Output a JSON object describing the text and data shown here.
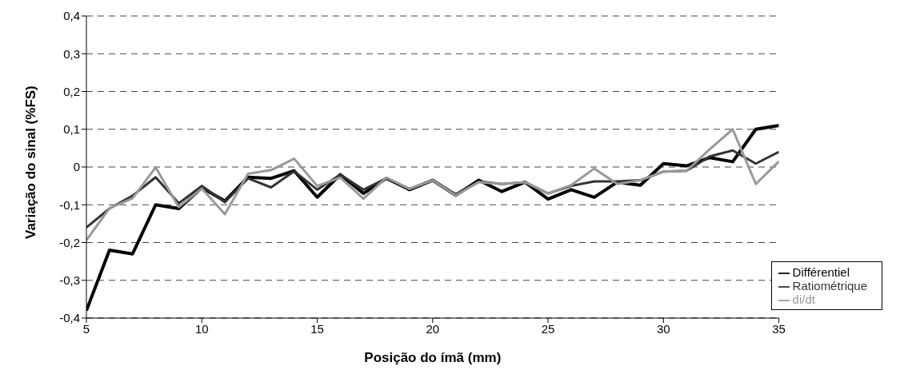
{
  "chart_data": {
    "type": "line",
    "xlabel": "Posição do ímã (mm)",
    "ylabel": "Variação do sinal (%FS)",
    "x": [
      5,
      6,
      7,
      8,
      9,
      10,
      11,
      12,
      13,
      14,
      15,
      16,
      17,
      18,
      19,
      20,
      21,
      22,
      23,
      24,
      25,
      26,
      27,
      28,
      29,
      30,
      31,
      32,
      33,
      34,
      35
    ],
    "series": [
      {
        "name": "Différentiel",
        "color": "#000000",
        "values": [
          -0.38,
          -0.22,
          -0.23,
          -0.1,
          -0.11,
          -0.055,
          -0.09,
          -0.027,
          -0.03,
          -0.01,
          -0.08,
          -0.02,
          -0.07,
          -0.03,
          -0.06,
          -0.035,
          -0.075,
          -0.035,
          -0.065,
          -0.04,
          -0.085,
          -0.06,
          -0.08,
          -0.04,
          -0.048,
          0.009,
          0.003,
          0.025,
          0.014,
          0.1,
          0.11
        ]
      },
      {
        "name": "Ratiométrique",
        "color": "#333333",
        "values": [
          -0.16,
          -0.11,
          -0.076,
          -0.027,
          -0.096,
          -0.05,
          -0.093,
          -0.03,
          -0.054,
          -0.011,
          -0.06,
          -0.02,
          -0.06,
          -0.03,
          -0.058,
          -0.035,
          -0.072,
          -0.038,
          -0.045,
          -0.04,
          -0.07,
          -0.05,
          -0.038,
          -0.038,
          -0.035,
          -0.012,
          -0.01,
          0.028,
          0.044,
          0.009,
          0.04
        ]
      },
      {
        "name": "di/dt",
        "color": "#999999",
        "values": [
          -0.194,
          -0.109,
          -0.083,
          -0.001,
          -0.106,
          -0.057,
          -0.125,
          -0.018,
          -0.008,
          0.022,
          -0.05,
          -0.028,
          -0.084,
          -0.028,
          -0.058,
          -0.035,
          -0.075,
          -0.04,
          -0.045,
          -0.04,
          -0.07,
          -0.048,
          -0.004,
          -0.045,
          -0.035,
          -0.012,
          -0.01,
          0.047,
          0.1,
          -0.045,
          0.015
        ]
      }
    ],
    "xlim": [
      5,
      35
    ],
    "xticks": [
      5,
      10,
      15,
      20,
      25,
      30,
      35
    ],
    "ylim": [
      -0.4,
      0.4
    ],
    "yticks": [
      {
        "value": -0.4,
        "label": "-0,4"
      },
      {
        "value": -0.3,
        "label": "-0,3"
      },
      {
        "value": -0.2,
        "label": "-0,2"
      },
      {
        "value": -0.1,
        "label": "-0,1"
      },
      {
        "value": 0,
        "label": "0"
      },
      {
        "value": 0.1,
        "label": "0,1"
      },
      {
        "value": 0.2,
        "label": "0,2"
      },
      {
        "value": 0.3,
        "label": "0,3"
      },
      {
        "value": 0.4,
        "label": "0,4"
      }
    ],
    "grid": "y",
    "legend": "bottom right",
    "marker": "none",
    "line_style": "solid"
  }
}
